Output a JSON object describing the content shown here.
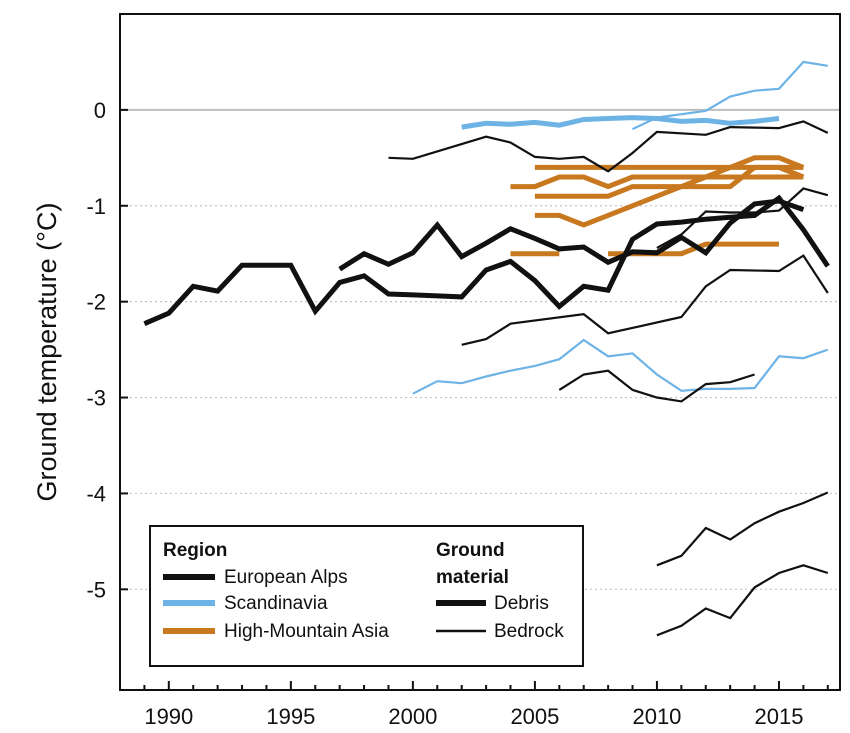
{
  "chart_data": {
    "type": "line",
    "ylabel": "Ground temperature (°C)",
    "xlabel": "",
    "title": "",
    "xlim": [
      1988,
      2017.5
    ],
    "ylim": [
      -6.05,
      1.0
    ],
    "x_ticks": [
      1990,
      1995,
      2000,
      2005,
      2010,
      2015
    ],
    "x_tick_labels": [
      "1990",
      "1995",
      "2000",
      "2005",
      "2010",
      "2015"
    ],
    "y_ticks": [
      0,
      -1,
      -2,
      -3,
      -4,
      -5
    ],
    "y_tick_labels": [
      "0",
      "-1",
      "-2",
      "-3",
      "-4",
      "-5"
    ],
    "zero_line": true,
    "colors": {
      "European Alps": "#111111",
      "Scandinavia": "#6db3e6",
      "High-Mountain Asia": "#c8781e",
      "zero_line": "#bdbdbd"
    },
    "legend": {
      "position": "bottom-left",
      "region_title": "Region",
      "region_items": [
        "European Alps",
        "Scandinavia",
        "High-Mountain Asia"
      ],
      "material_title_lines": [
        "Ground",
        "material"
      ],
      "material_items": [
        "Debris",
        "Bedrock"
      ]
    },
    "series": [
      {
        "region": "European Alps",
        "material": "Debris",
        "x": [
          1989,
          1990,
          1991,
          1992,
          1993,
          1994,
          1995,
          1996,
          1997,
          1998,
          1999,
          2000,
          2001,
          2002,
          2003,
          2004,
          2005,
          2006,
          2007,
          2008,
          2009,
          2010,
          2011,
          2012,
          2013,
          2014,
          2015,
          2016,
          2017
        ],
        "y": [
          -2.23,
          -2.12,
          -1.84,
          -1.89,
          -1.62,
          -1.62,
          -1.62,
          -2.1,
          -1.8,
          -1.73,
          -1.92,
          -1.93,
          -1.94,
          -1.95,
          -1.67,
          -1.58,
          -1.78,
          -2.05,
          -1.84,
          -1.88,
          -1.35,
          -1.19,
          -1.17,
          -1.14,
          -1.12,
          -1.1,
          -0.92,
          -1.25,
          -1.63
        ]
      },
      {
        "region": "European Alps",
        "material": "Debris",
        "x": [
          1997,
          1998,
          1999,
          2000,
          2001,
          2002,
          2003,
          2004,
          2005,
          2006,
          2007,
          2008,
          2009,
          2010,
          2011,
          2012,
          2013,
          2014,
          2015,
          2016
        ],
        "y": [
          -1.66,
          -1.5,
          -1.61,
          -1.49,
          -1.2,
          -1.53,
          -1.39,
          -1.24,
          -1.34,
          -1.45,
          -1.43,
          -1.59,
          -1.48,
          -1.49,
          -1.33,
          -1.49,
          -1.18,
          -0.98,
          -0.95,
          -1.04
        ]
      },
      {
        "region": "European Alps",
        "material": "Bedrock",
        "x": [
          1999,
          2000,
          2003,
          2004,
          2005,
          2006,
          2007,
          2008,
          2009,
          2010,
          2012,
          2013,
          2015,
          2016,
          2017
        ],
        "y": [
          -0.5,
          -0.51,
          -0.28,
          -0.34,
          -0.49,
          -0.51,
          -0.49,
          -0.64,
          -0.45,
          -0.23,
          -0.26,
          -0.18,
          -0.19,
          -0.12,
          -0.24
        ]
      },
      {
        "region": "European Alps",
        "material": "Bedrock",
        "x": [
          2010,
          2011,
          2012,
          2013,
          2014,
          2015,
          2016,
          2017
        ],
        "y": [
          -1.44,
          -1.3,
          -1.06,
          -1.07,
          -1.07,
          -1.05,
          -0.82,
          -0.89
        ]
      },
      {
        "region": "European Alps",
        "material": "Bedrock",
        "x": [
          2002,
          2003,
          2004,
          2007,
          2008,
          2011,
          2012,
          2013,
          2015,
          2016,
          2017
        ],
        "y": [
          -2.45,
          -2.39,
          -2.23,
          -2.13,
          -2.33,
          -2.16,
          -1.84,
          -1.67,
          -1.68,
          -1.52,
          -1.91
        ]
      },
      {
        "region": "European Alps",
        "material": "Bedrock",
        "x": [
          2006,
          2007,
          2008,
          2009,
          2010,
          2011,
          2012,
          2013,
          2014
        ],
        "y": [
          -2.92,
          -2.76,
          -2.72,
          -2.92,
          -3.0,
          -3.04,
          -2.86,
          -2.84,
          -2.76
        ]
      },
      {
        "region": "European Alps",
        "material": "Bedrock",
        "x": [
          2010,
          2011,
          2012,
          2013,
          2014,
          2015,
          2016,
          2017
        ],
        "y": [
          -4.75,
          -4.65,
          -4.36,
          -4.48,
          -4.31,
          -4.19,
          -4.1,
          -3.99
        ]
      },
      {
        "region": "European Alps",
        "material": "Bedrock",
        "x": [
          2010,
          2011,
          2012,
          2013,
          2014,
          2015,
          2016,
          2017
        ],
        "y": [
          -5.48,
          -5.38,
          -5.2,
          -5.3,
          -4.98,
          -4.83,
          -4.75,
          -4.83
        ]
      },
      {
        "region": "Scandinavia",
        "material": "Debris",
        "x": [
          2002,
          2003,
          2004,
          2005,
          2006,
          2007,
          2008,
          2009,
          2010,
          2011,
          2012,
          2013,
          2014,
          2015
        ],
        "y": [
          -0.18,
          -0.14,
          -0.15,
          -0.13,
          -0.16,
          -0.1,
          -0.09,
          -0.08,
          -0.09,
          -0.12,
          -0.11,
          -0.14,
          -0.12,
          -0.09
        ]
      },
      {
        "region": "Scandinavia",
        "material": "Bedrock",
        "x": [
          2009,
          2010,
          2012,
          2013,
          2014,
          2015,
          2016,
          2017
        ],
        "y": [
          -0.2,
          -0.08,
          -0.01,
          0.14,
          0.2,
          0.22,
          0.5,
          0.46
        ]
      },
      {
        "region": "Scandinavia",
        "material": "Bedrock",
        "x": [
          2000,
          2001,
          2002,
          2003,
          2004,
          2005,
          2006,
          2007,
          2008,
          2009,
          2010,
          2011,
          2012,
          2013,
          2014,
          2015,
          2016,
          2017
        ],
        "y": [
          -2.96,
          -2.83,
          -2.85,
          -2.78,
          -2.72,
          -2.67,
          -2.6,
          -2.4,
          -2.57,
          -2.54,
          -2.76,
          -2.93,
          -2.91,
          -2.91,
          -2.9,
          -2.57,
          -2.59,
          -2.5
        ]
      },
      {
        "region": "High-Mountain Asia",
        "material": "Debris",
        "x": [
          2005,
          2015,
          2016
        ],
        "y": [
          -0.6,
          -0.6,
          -0.6
        ]
      },
      {
        "region": "High-Mountain Asia",
        "material": "Debris",
        "x": [
          2005,
          2006,
          2007,
          2008,
          2009,
          2010,
          2011,
          2012,
          2013,
          2014,
          2015,
          2016
        ],
        "y": [
          -0.9,
          -0.9,
          -0.9,
          -0.9,
          -0.8,
          -0.8,
          -0.8,
          -0.8,
          -0.8,
          -0.6,
          -0.6,
          -0.7
        ]
      },
      {
        "region": "High-Mountain Asia",
        "material": "Debris",
        "x": [
          2004,
          2005,
          2006,
          2007,
          2008,
          2009,
          2010,
          2011,
          2012,
          2013,
          2014,
          2015,
          2016
        ],
        "y": [
          -0.8,
          -0.8,
          -0.7,
          -0.7,
          -0.8,
          -0.7,
          -0.7,
          -0.7,
          -0.7,
          -0.7,
          -0.7,
          -0.7,
          -0.7
        ]
      },
      {
        "region": "High-Mountain Asia",
        "material": "Debris",
        "x": [
          2005,
          2006,
          2007,
          2008,
          2009,
          2010,
          2011,
          2012,
          2013,
          2014,
          2015,
          2016
        ],
        "y": [
          -1.1,
          -1.1,
          -1.2,
          -1.1,
          -1.0,
          -0.9,
          -0.8,
          -0.7,
          -0.6,
          -0.5,
          -0.5,
          -0.6
        ]
      },
      {
        "region": "High-Mountain Asia",
        "material": "Debris",
        "x": [
          2004,
          2005,
          2006
        ],
        "y": [
          -1.5,
          -1.5,
          -1.5
        ]
      },
      {
        "region": "High-Mountain Asia",
        "material": "Debris",
        "x": [
          2008,
          2009,
          2010,
          2011,
          2012,
          2013,
          2014,
          2015
        ],
        "y": [
          -1.5,
          -1.5,
          -1.5,
          -1.5,
          -1.4,
          -1.4,
          -1.4,
          -1.4
        ]
      }
    ]
  }
}
